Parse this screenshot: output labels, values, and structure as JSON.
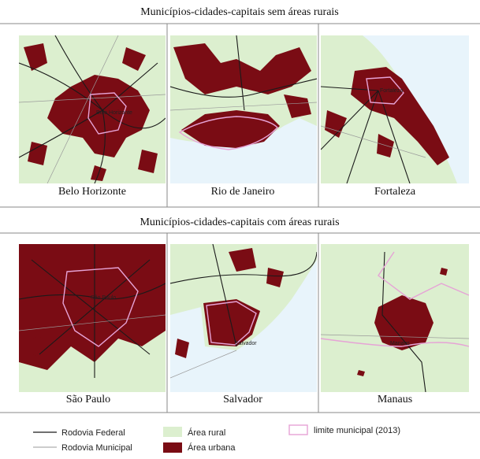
{
  "sections": [
    {
      "title": "Municípios-cidades-capitais sem áreas rurais",
      "maps": [
        {
          "name": "Belo Horizonte",
          "map_label": "Belo Horizonte"
        },
        {
          "name": "Rio de Janeiro"
        },
        {
          "name": "Fortaleza",
          "map_label": "Fortaleza"
        }
      ]
    },
    {
      "title": "Municípios-cidades-capitais com áreas rurais",
      "maps": [
        {
          "name": "São Paulo",
          "map_label": "São Paulo"
        },
        {
          "name": "Salvador",
          "map_label": "Salvador"
        },
        {
          "name": "Manaus",
          "map_label": "Manaus"
        }
      ]
    }
  ],
  "legend": [
    "Rodovia Federal",
    "Rodovia Municipal",
    "Área rural",
    "Área urbana",
    "limite municipal (2013)"
  ]
}
